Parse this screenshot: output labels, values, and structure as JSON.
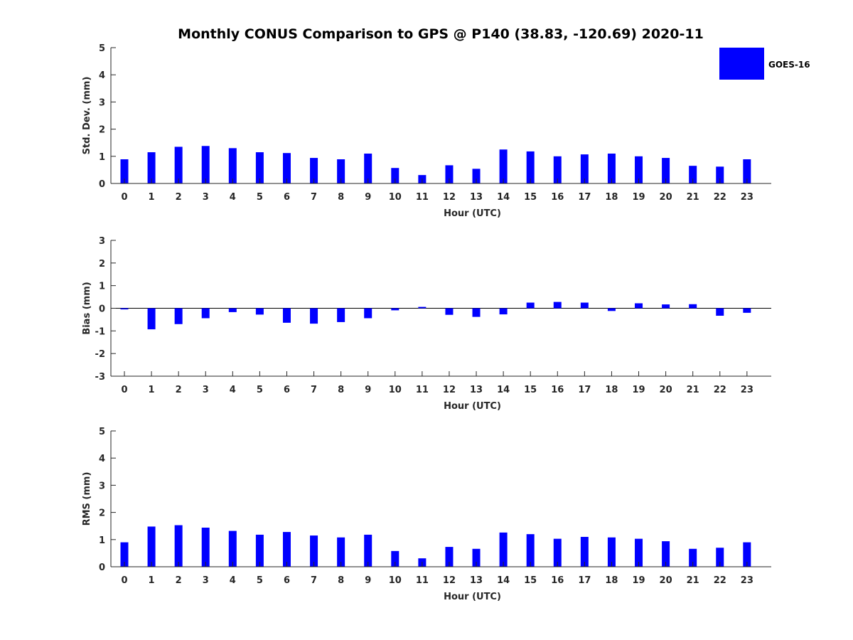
{
  "title": "Monthly CONUS Comparison to GPS @ P140 (38.83, -120.69) 2020-11",
  "legend": {
    "label": "GOES-16",
    "color": "#0000ff",
    "position": "top-right"
  },
  "chart_data": [
    {
      "type": "bar",
      "xlabel": "Hour (UTC)",
      "ylabel": "Std. Dev. (mm)",
      "ylim": [
        0,
        5
      ],
      "yticks": [
        0,
        1,
        2,
        3,
        4,
        5
      ],
      "categories": [
        "0",
        "1",
        "2",
        "3",
        "4",
        "5",
        "6",
        "7",
        "8",
        "9",
        "10",
        "11",
        "12",
        "13",
        "14",
        "15",
        "16",
        "17",
        "18",
        "19",
        "20",
        "21",
        "22",
        "23"
      ],
      "series": [
        {
          "name": "GOES-16",
          "color": "#0000ff",
          "values": [
            0.89,
            1.15,
            1.35,
            1.38,
            1.3,
            1.15,
            1.12,
            0.94,
            0.89,
            1.1,
            0.57,
            0.31,
            0.67,
            0.54,
            1.25,
            1.18,
            1.0,
            1.07,
            1.1,
            1.0,
            0.94,
            0.65,
            0.62,
            0.89
          ]
        }
      ]
    },
    {
      "type": "bar",
      "xlabel": "Hour (UTC)",
      "ylabel": "Bias (mm)",
      "ylim": [
        -3,
        3
      ],
      "yticks": [
        -3,
        -2,
        -1,
        0,
        1,
        2,
        3
      ],
      "categories": [
        "0",
        "1",
        "2",
        "3",
        "4",
        "5",
        "6",
        "7",
        "8",
        "9",
        "10",
        "11",
        "12",
        "13",
        "14",
        "15",
        "16",
        "17",
        "18",
        "19",
        "20",
        "21",
        "22",
        "23"
      ],
      "series": [
        {
          "name": "GOES-16",
          "color": "#0000ff",
          "values": [
            -0.05,
            -0.93,
            -0.7,
            -0.44,
            -0.17,
            -0.28,
            -0.64,
            -0.68,
            -0.61,
            -0.44,
            -0.09,
            0.06,
            -0.29,
            -0.38,
            -0.27,
            0.25,
            0.28,
            0.25,
            -0.12,
            0.22,
            0.17,
            0.18,
            -0.33,
            -0.2
          ]
        }
      ]
    },
    {
      "type": "bar",
      "xlabel": "Hour (UTC)",
      "ylabel": "RMS (mm)",
      "ylim": [
        0,
        5
      ],
      "yticks": [
        0,
        1,
        2,
        3,
        4,
        5
      ],
      "categories": [
        "0",
        "1",
        "2",
        "3",
        "4",
        "5",
        "6",
        "7",
        "8",
        "9",
        "10",
        "11",
        "12",
        "13",
        "14",
        "15",
        "16",
        "17",
        "18",
        "19",
        "20",
        "21",
        "22",
        "23"
      ],
      "series": [
        {
          "name": "GOES-16",
          "color": "#0000ff",
          "values": [
            0.9,
            1.48,
            1.53,
            1.44,
            1.32,
            1.18,
            1.28,
            1.15,
            1.08,
            1.18,
            0.58,
            0.31,
            0.73,
            0.66,
            1.26,
            1.2,
            1.03,
            1.1,
            1.08,
            1.03,
            0.94,
            0.66,
            0.7,
            0.9
          ]
        }
      ]
    }
  ]
}
